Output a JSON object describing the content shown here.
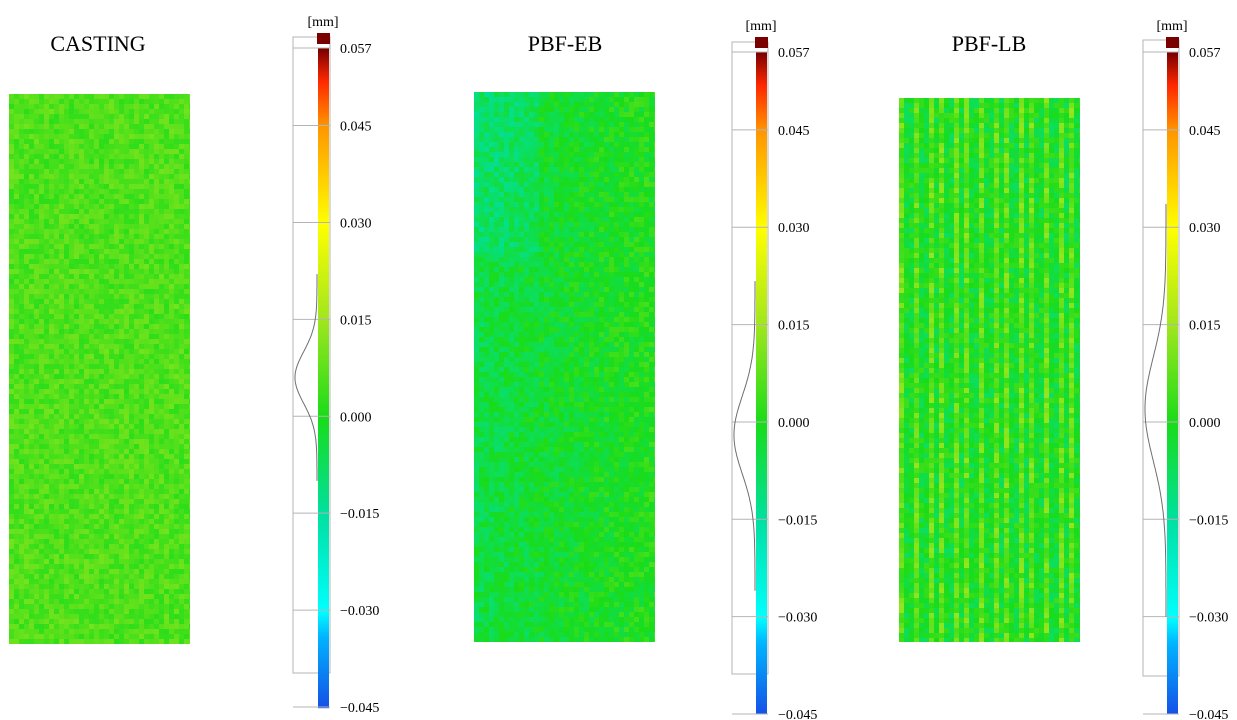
{
  "chart_data": [
    {
      "type": "heatmap",
      "title": "CASTING",
      "colorbar": {
        "unit": "[mm]",
        "range": [
          -0.045,
          0.057
        ],
        "ticks": [
          "0.057",
          "0.045",
          "0.030",
          "0.015",
          "0.000",
          "−0.015",
          "−0.030",
          "−0.045"
        ],
        "tick_values": [
          0.057,
          0.045,
          0.03,
          0.015,
          0.0,
          -0.015,
          -0.03,
          -0.045
        ]
      },
      "surface": {
        "pattern": "random",
        "mean_deviation": 0.006,
        "spread": 0.004
      },
      "distribution": {
        "peak": 0.006,
        "std": 0.004
      }
    },
    {
      "type": "heatmap",
      "title": "PBF-EB",
      "colorbar": {
        "unit": "[mm]",
        "range": [
          -0.045,
          0.057
        ],
        "ticks": [
          "0.057",
          "0.045",
          "0.030",
          "0.015",
          "0.000",
          "−0.015",
          "−0.030",
          "−0.045"
        ],
        "tick_values": [
          0.057,
          0.045,
          0.03,
          0.015,
          0.0,
          -0.015,
          -0.03,
          -0.045
        ]
      },
      "surface": {
        "pattern": "gradient",
        "mean_deviation": -0.002,
        "spread": 0.005
      },
      "distribution": {
        "peak": -0.002,
        "std": 0.006
      }
    },
    {
      "type": "heatmap",
      "title": "PBF-LB",
      "colorbar": {
        "unit": "[mm]",
        "range": [
          -0.045,
          0.057
        ],
        "ticks": [
          "0.057",
          "0.045",
          "0.030",
          "0.015",
          "0.000",
          "−0.015",
          "−0.030",
          "−0.045"
        ],
        "tick_values": [
          0.057,
          0.045,
          0.03,
          0.015,
          0.0,
          -0.015,
          -0.03,
          -0.045
        ]
      },
      "surface": {
        "pattern": "stripes",
        "mean_deviation": 0.002,
        "spread": 0.006
      },
      "distribution": {
        "peak": 0.002,
        "std": 0.008
      }
    }
  ],
  "colors": {
    "scale": [
      "#1550e6",
      "#00b4ff",
      "#00ffff",
      "#00e0a0",
      "#19dc19",
      "#a0e61e",
      "#ffff00",
      "#ff9600",
      "#ff2800",
      "#7a0000"
    ],
    "frame": "#b4b4b4",
    "curve": "#6e6e6e"
  }
}
